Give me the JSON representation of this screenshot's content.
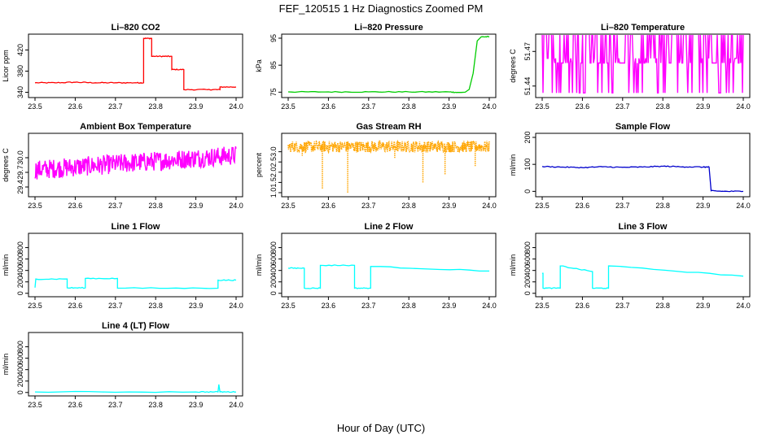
{
  "figure": {
    "title": "FEF_120515  1 Hz Diagnostics Zoomed PM",
    "xlabel": "Hour of Day (UTC)"
  },
  "chart_data": [
    {
      "type": "line",
      "title": "Li–820 CO2",
      "ylabel": "Licor ppm",
      "color": "#ff0000",
      "xlim": [
        23.5,
        24.0
      ],
      "ylim": [
        330,
        450
      ],
      "xticks": [
        "23.5",
        "23.6",
        "23.7",
        "23.8",
        "23.9",
        "24.0"
      ],
      "yticks": [
        "340",
        "380",
        "420"
      ],
      "series": [
        {
          "x": [
            23.5,
            23.55,
            23.6,
            23.65,
            23.7,
            23.75,
            23.77,
            23.77,
            23.79,
            23.79,
            23.82,
            23.82,
            23.84,
            23.84,
            23.87,
            23.87,
            23.93,
            23.93,
            23.96,
            23.96,
            24.0
          ],
          "y": [
            358,
            358,
            359,
            358,
            358,
            358,
            358,
            442,
            442,
            408,
            408,
            408,
            408,
            383,
            383,
            345,
            345,
            345,
            345,
            350,
            350
          ]
        }
      ]
    },
    {
      "type": "line",
      "title": "Li–820 Pressure",
      "ylabel": "kPa",
      "color": "#00cc00",
      "xlim": [
        23.5,
        24.0
      ],
      "ylim": [
        73,
        96.5
      ],
      "xticks": [
        "23.5",
        "23.6",
        "23.7",
        "23.8",
        "23.9",
        "24.0"
      ],
      "yticks": [
        "75",
        "85",
        "95"
      ],
      "series": [
        {
          "x": [
            23.5,
            23.6,
            23.7,
            23.8,
            23.9,
            23.92,
            23.93,
            23.94,
            23.95,
            23.96,
            23.965,
            23.97,
            23.98,
            24.0
          ],
          "y": [
            75.1,
            75.1,
            75.1,
            75.1,
            75.1,
            74.9,
            74.9,
            75.0,
            76,
            82,
            88,
            94,
            95.5,
            95.5
          ]
        }
      ]
    },
    {
      "type": "line",
      "title": "Li–820 Temperature",
      "ylabel": "degrees C",
      "color": "#ff00ff",
      "xlim": [
        23.5,
        24.0
      ],
      "ylim": [
        51.43,
        51.485
      ],
      "xticks": [
        "23.5",
        "23.6",
        "23.7",
        "23.8",
        "23.9",
        "24.0"
      ],
      "yticks": [
        "51.44",
        "51.47"
      ],
      "noise": {
        "base": 51.46,
        "high": 51.485,
        "low": 51.434,
        "points": 240
      }
    },
    {
      "type": "line",
      "title": "Ambient Box Temperature",
      "ylabel": "degrees C",
      "color": "#ff00ff",
      "xlim": [
        23.5,
        24.0
      ],
      "ylim": [
        29.2,
        30.5
      ],
      "xticks": [
        "23.5",
        "23.6",
        "23.7",
        "23.8",
        "23.9",
        "24.0"
      ],
      "yticks": [
        "29.4",
        "29.7",
        "30.0"
      ],
      "noise": {
        "start": 29.75,
        "end": 30.05,
        "amp": 0.2,
        "points": 400
      }
    },
    {
      "type": "scatter",
      "title": "Gas Stream RH",
      "ylabel": "percent",
      "color": "#ffa500",
      "xlim": [
        23.5,
        24.0
      ],
      "ylim": [
        0.8,
        3.9
      ],
      "xticks": [
        "23.5",
        "23.6",
        "23.7",
        "23.8",
        "23.9",
        "24.0"
      ],
      "yticks": [
        "1.0",
        "1.5",
        "2.0",
        "2.5",
        "3.0"
      ],
      "noise": {
        "base": 3.25,
        "amp": 0.28,
        "points": 500
      },
      "spikes": [
        {
          "x": 23.585,
          "y": 1.2
        },
        {
          "x": 23.648,
          "y": 1.0
        },
        {
          "x": 23.835,
          "y": 1.5
        },
        {
          "x": 23.89,
          "y": 1.9
        },
        {
          "x": 23.765,
          "y": 2.7
        },
        {
          "x": 23.965,
          "y": 2.3
        },
        {
          "x": 23.535,
          "y": 2.8
        }
      ]
    },
    {
      "type": "line",
      "title": "Sample Flow",
      "ylabel": "ml/min",
      "color": "#0000cc",
      "xlim": [
        23.5,
        24.0
      ],
      "ylim": [
        -20,
        215
      ],
      "xticks": [
        "23.5",
        "23.6",
        "23.7",
        "23.8",
        "23.9",
        "24.0"
      ],
      "yticks": [
        "0",
        "100",
        "200"
      ],
      "series": [
        {
          "x": [
            23.5,
            23.55,
            23.6,
            23.65,
            23.7,
            23.75,
            23.8,
            23.85,
            23.9,
            23.915,
            23.92,
            23.95,
            24.0
          ],
          "y": [
            92,
            90,
            88,
            91,
            89,
            90,
            93,
            91,
            90,
            90,
            2,
            0,
            0
          ]
        }
      ]
    },
    {
      "type": "line",
      "title": "Line 1 Flow",
      "ylabel": "ml/min",
      "color": "#00ffff",
      "xlim": [
        23.5,
        24.0
      ],
      "ylim": [
        -60,
        1050
      ],
      "xticks": [
        "23.5",
        "23.6",
        "23.7",
        "23.8",
        "23.9",
        "24.0"
      ],
      "yticks": [
        "0",
        "200",
        "400",
        "600",
        "800"
      ],
      "series": [
        {
          "x": [
            23.5,
            23.502,
            23.58,
            23.58,
            23.625,
            23.625,
            23.705,
            23.705,
            23.955,
            23.955,
            24.0
          ],
          "y": [
            100,
            250,
            250,
            95,
            95,
            260,
            260,
            90,
            90,
            230,
            230
          ]
        }
      ]
    },
    {
      "type": "line",
      "title": "Line 2 Flow",
      "ylabel": "ml/min",
      "color": "#00ffff",
      "xlim": [
        23.5,
        24.0
      ],
      "ylim": [
        -60,
        1050
      ],
      "xticks": [
        "23.5",
        "23.6",
        "23.7",
        "23.8",
        "23.9",
        "24.0"
      ],
      "yticks": [
        "0",
        "200",
        "400",
        "600",
        "800"
      ],
      "series": [
        {
          "x": [
            23.5,
            23.54,
            23.54,
            23.58,
            23.58,
            23.665,
            23.665,
            23.705,
            23.705,
            24.0
          ],
          "y": [
            440,
            440,
            90,
            90,
            490,
            490,
            90,
            90,
            470,
            390
          ]
        }
      ]
    },
    {
      "type": "line",
      "title": "Line 3 Flow",
      "ylabel": "ml/min",
      "color": "#00ffff",
      "xlim": [
        23.5,
        24.0
      ],
      "ylim": [
        -60,
        1050
      ],
      "xticks": [
        "23.5",
        "23.6",
        "23.7",
        "23.8",
        "23.9",
        "24.0"
      ],
      "yticks": [
        "0",
        "200",
        "400",
        "600",
        "800"
      ],
      "series": [
        {
          "x": [
            23.5,
            23.502,
            23.502,
            23.545,
            23.545,
            23.625,
            23.625,
            23.665,
            23.665,
            24.0
          ],
          "y": [
            350,
            350,
            90,
            90,
            480,
            380,
            90,
            90,
            480,
            300
          ]
        }
      ]
    },
    {
      "type": "line",
      "title": "Line 4 (LT) Flow",
      "ylabel": "ml/min",
      "color": "#00ffff",
      "xlim": [
        23.5,
        24.0
      ],
      "ylim": [
        -60,
        1050
      ],
      "xticks": [
        "23.5",
        "23.6",
        "23.7",
        "23.8",
        "23.9",
        "24.0"
      ],
      "yticks": [
        "0",
        "200",
        "400",
        "600",
        "800"
      ],
      "series": [
        {
          "x": [
            23.5,
            23.9,
            23.955,
            23.957,
            23.96,
            24.0
          ],
          "y": [
            10,
            10,
            10,
            140,
            10,
            10
          ]
        }
      ]
    }
  ]
}
